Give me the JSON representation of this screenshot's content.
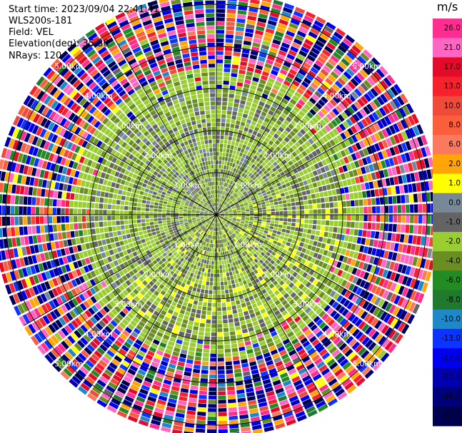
{
  "header": {
    "start_time": "Start time: 2023/09/04 22:41:41",
    "instrument": "WLS200s-181",
    "field": "Field: VEL",
    "elevation": "Elevation(deg): 35.30",
    "nrays": "NRays: 120"
  },
  "chart_data": {
    "type": "heatmap",
    "projection": "polar-ppi",
    "field": "VEL",
    "units": "m/s",
    "nrays": 120,
    "elevation_deg": 35.3,
    "range_rings_km": [
      1.0,
      2.0,
      3.0,
      4.0,
      5.0
    ],
    "ring_labels": [
      "1.00km",
      "2.00km",
      "3.00km",
      "4.00km",
      "5.00km"
    ],
    "max_range_km": 5.2,
    "spokes_deg": [
      0,
      30,
      60,
      90,
      120,
      150,
      180,
      210,
      240,
      270,
      300,
      330
    ],
    "colorbar": {
      "title": "m/s",
      "ticks": [
        "26.0",
        "21.0",
        "17.0",
        "13.0",
        "10.0",
        "8.0",
        "6.0",
        "2.0",
        "1.0",
        "0.0",
        "-1.0",
        "-2.0",
        "-4.0",
        "-6.0",
        "-8.0",
        "-10.0",
        "-13.0",
        "-17.0",
        "-21.0",
        "-26.0",
        "-30.0"
      ],
      "bins": [
        {
          "from": 26,
          "to": 30,
          "color": "#ff2d8f"
        },
        {
          "from": 21,
          "to": 26,
          "color": "#ff66c4"
        },
        {
          "from": 17,
          "to": 21,
          "color": "#e40a2a"
        },
        {
          "from": 13,
          "to": 17,
          "color": "#f5222d"
        },
        {
          "from": 10,
          "to": 13,
          "color": "#f04a3b"
        },
        {
          "from": 8,
          "to": 10,
          "color": "#fa5e3a"
        },
        {
          "from": 6,
          "to": 8,
          "color": "#fb7a5f"
        },
        {
          "from": 2,
          "to": 6,
          "color": "#ffa50a"
        },
        {
          "from": 1,
          "to": 2,
          "color": "#ffff00"
        },
        {
          "from": 0,
          "to": 1,
          "color": "#778899"
        },
        {
          "from": -1,
          "to": 0,
          "color": "#646464"
        },
        {
          "from": -2,
          "to": -1,
          "color": "#9acd32"
        },
        {
          "from": -4,
          "to": -2,
          "color": "#6b8e23"
        },
        {
          "from": -6,
          "to": -4,
          "color": "#228b22"
        },
        {
          "from": -8,
          "to": -6,
          "color": "#1f7a2e"
        },
        {
          "from": -10,
          "to": -8,
          "color": "#1e88c8"
        },
        {
          "from": -13,
          "to": -10,
          "color": "#0c33ff"
        },
        {
          "from": -17,
          "to": -13,
          "color": "#0000ee"
        },
        {
          "from": -21,
          "to": -17,
          "color": "#0000b0"
        },
        {
          "from": -26,
          "to": -21,
          "color": "#00007a"
        },
        {
          "from": -30,
          "to": -26,
          "color": "#000050"
        }
      ]
    }
  }
}
